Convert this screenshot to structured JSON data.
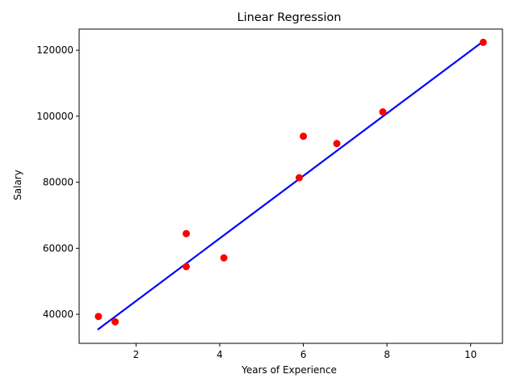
{
  "chart_data": {
    "type": "scatter",
    "title": "Linear Regression",
    "xlabel": "Years of Experience",
    "ylabel": "Salary",
    "xlim": [
      0.64,
      10.76
    ],
    "ylim": [
      31200,
      126400
    ],
    "xticks": [
      2,
      4,
      6,
      8,
      10
    ],
    "yticks": [
      40000,
      60000,
      80000,
      100000,
      120000
    ],
    "grid": false,
    "series": [
      {
        "type": "scatter",
        "color": "#ff0000",
        "points": [
          {
            "x": 1.1,
            "y": 39343
          },
          {
            "x": 1.5,
            "y": 37731
          },
          {
            "x": 3.2,
            "y": 54445
          },
          {
            "x": 3.2,
            "y": 64445
          },
          {
            "x": 4.1,
            "y": 57081
          },
          {
            "x": 5.9,
            "y": 81363
          },
          {
            "x": 6.0,
            "y": 93940
          },
          {
            "x": 6.8,
            "y": 91738
          },
          {
            "x": 7.9,
            "y": 101302
          },
          {
            "x": 10.3,
            "y": 122391
          }
        ]
      },
      {
        "type": "line",
        "color": "#0000ff",
        "points": [
          {
            "x": 1.1,
            "y": 35500
          },
          {
            "x": 10.3,
            "y": 122700
          }
        ]
      }
    ]
  }
}
